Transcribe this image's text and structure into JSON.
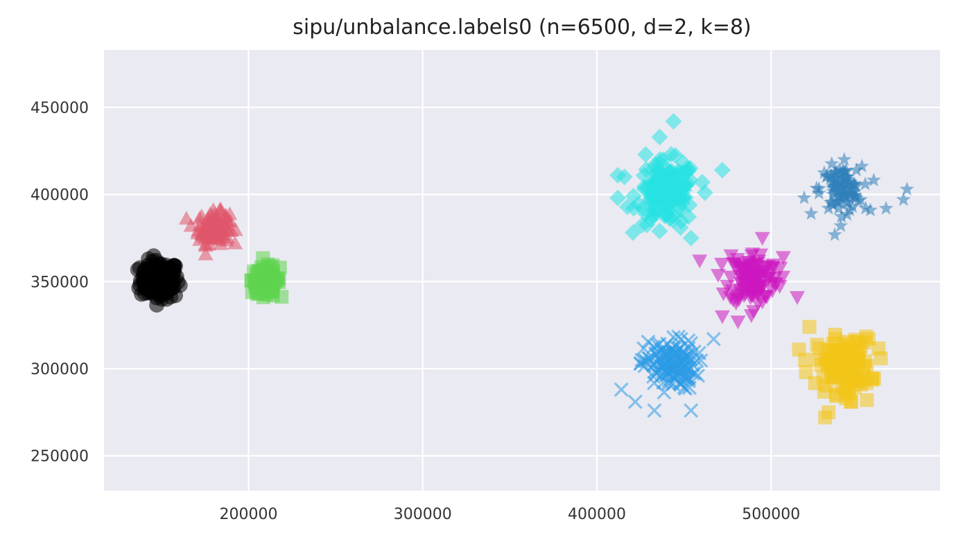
{
  "chart_data": {
    "type": "scatter",
    "title": "sipu/unbalance.labels0 (n=6500, d=2, k=8)",
    "xlabel": "",
    "ylabel": "",
    "xlim": [
      117000,
      597000
    ],
    "ylim": [
      230000,
      483000
    ],
    "xticks": [
      200000,
      300000,
      400000,
      500000
    ],
    "yticks": [
      250000,
      300000,
      350000,
      400000,
      450000
    ],
    "grid": true,
    "background": "#eaeaf2",
    "clusters": [
      {
        "label": "0",
        "marker": "circle",
        "color": "#000000",
        "center": [
          149000,
          351000
        ],
        "spread": [
          5500,
          5500
        ],
        "count": 160,
        "extra_points": [
          [
            140000,
            356000
          ],
          [
            158000,
            342000
          ],
          [
            150000,
            340000
          ],
          [
            143000,
            358000
          ]
        ]
      },
      {
        "label": "1",
        "marker": "triangle-up",
        "color": "#e0566a",
        "center": [
          180000,
          381000
        ],
        "spread": [
          4500,
          4500
        ],
        "count": 110,
        "extra_points": [
          [
            187000,
            388000
          ],
          [
            172000,
            374000
          ],
          [
            184000,
            390000
          ]
        ]
      },
      {
        "label": "2",
        "marker": "square",
        "color": "#5fd34f",
        "center": [
          210000,
          351000
        ],
        "spread": [
          4000,
          3800
        ],
        "count": 110,
        "extra_points": [
          [
            205000,
            343000
          ],
          [
            218000,
            358000
          ],
          [
            214000,
            342000
          ]
        ]
      },
      {
        "label": "3",
        "marker": "diamond",
        "color": "#27e2e2",
        "center": [
          440000,
          401000
        ],
        "spread": [
          8500,
          9000
        ],
        "count": 130,
        "extra_points": [
          [
            444000,
            442000
          ],
          [
            436000,
            433000
          ],
          [
            428000,
            423000
          ],
          [
            472000,
            414000
          ],
          [
            412000,
            411000
          ],
          [
            412000,
            398000
          ],
          [
            454000,
            375000
          ],
          [
            448000,
            381000
          ],
          [
            462000,
            401000
          ],
          [
            436000,
            379000
          ]
        ]
      },
      {
        "label": "4",
        "marker": "star",
        "color": "#2f7fba",
        "center": [
          540000,
          403000
        ],
        "spread": [
          6000,
          6500
        ],
        "count": 90,
        "extra_points": [
          [
            578000,
            403000
          ],
          [
            576000,
            397000
          ],
          [
            566000,
            392000
          ],
          [
            557000,
            391000
          ],
          [
            519000,
            398000
          ],
          [
            523000,
            389000
          ],
          [
            540000,
            382000
          ],
          [
            542000,
            420000
          ],
          [
            549000,
            414000
          ]
        ]
      },
      {
        "label": "5",
        "marker": "triangle-down",
        "color": "#cc17bf",
        "center": [
          490000,
          352000
        ],
        "spread": [
          7000,
          7500
        ],
        "count": 130,
        "extra_points": [
          [
            459000,
            362000
          ],
          [
            507000,
            364000
          ],
          [
            472000,
            330000
          ],
          [
            490000,
            333000
          ],
          [
            495000,
            375000
          ],
          [
            477000,
            365000
          ],
          [
            515000,
            341000
          ],
          [
            481000,
            327000
          ]
        ]
      },
      {
        "label": "6",
        "marker": "x",
        "color": "#2c9ae6",
        "center": [
          442000,
          302000
        ],
        "spread": [
          7500,
          7000
        ],
        "count": 140,
        "extra_points": [
          [
            467000,
            317000
          ],
          [
            414000,
            288000
          ],
          [
            422000,
            281000
          ],
          [
            433000,
            276000
          ],
          [
            444000,
            318000
          ],
          [
            454000,
            276000
          ],
          [
            458000,
            296000
          ],
          [
            425000,
            303000
          ]
        ]
      },
      {
        "label": "7",
        "marker": "square",
        "color": "#f2c417",
        "center": [
          542000,
          302000
        ],
        "spread": [
          7500,
          8000
        ],
        "count": 130,
        "extra_points": [
          [
            522000,
            324000
          ],
          [
            516000,
            311000
          ],
          [
            533000,
            275000
          ],
          [
            531000,
            272000
          ],
          [
            563000,
            306000
          ],
          [
            555000,
            282000
          ],
          [
            546000,
            281000
          ],
          [
            520000,
            298000
          ],
          [
            556000,
            317000
          ]
        ]
      }
    ]
  }
}
